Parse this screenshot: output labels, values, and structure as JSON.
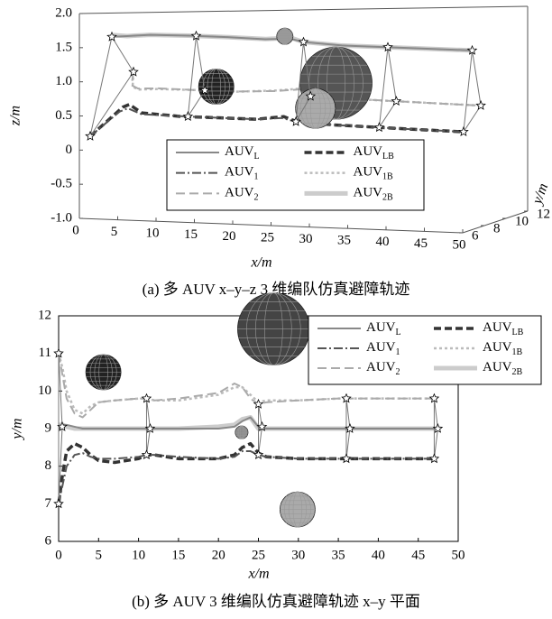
{
  "chart_data": [
    {
      "type": "line3d",
      "caption": "(a) 多 AUV x–y–z 3 维编队仿真避障轨迹",
      "xlabel": "x/m",
      "ylabel": "y/m",
      "zlabel": "z/m",
      "xlim": [
        0,
        50
      ],
      "ylim": [
        6,
        12
      ],
      "zlim": [
        -1,
        2
      ],
      "xticks": [
        0,
        5,
        10,
        15,
        20,
        25,
        30,
        35,
        40,
        45,
        50
      ],
      "yticks": [
        6,
        8,
        10,
        12
      ],
      "zticks": [
        {
          "value": -1,
          "label": "-1.0"
        },
        -0.5,
        0,
        0.5,
        {
          "value": 1,
          "label": "1.0"
        },
        1.5,
        {
          "value": 2,
          "label": "2.0"
        }
      ],
      "formation_x": [
        0,
        11,
        25,
        36,
        47
      ],
      "x": [
        0,
        2,
        3,
        5,
        10,
        15,
        20,
        23,
        25,
        30,
        40,
        47
      ],
      "series": [
        {
          "name": "AUV",
          "subscript": "L",
          "color": "#888888",
          "y": [
            9,
            9,
            9,
            9,
            9,
            9,
            9,
            9.2,
            9,
            9,
            9,
            9
          ],
          "z": [
            1.5,
            1.52,
            1.53,
            1.55,
            1.56,
            1.56,
            1.55,
            1.56,
            1.53,
            1.5,
            1.5,
            1.5
          ]
        },
        {
          "name": "AUV",
          "subscript": "LB",
          "color": "#333333",
          "y": [
            7,
            8.6,
            8.5,
            8.2,
            8.2,
            8.2,
            8.2,
            8.6,
            8.35,
            8.2,
            8.2,
            8.2
          ],
          "z": [
            0.15,
            0.5,
            0.55,
            0.45,
            0.42,
            0.42,
            0.42,
            0.45,
            0.4,
            0.38,
            0.36,
            0.35
          ]
        },
        {
          "name": "AUV",
          "subscript": "1",
          "color": "#555555",
          "y": [
            7,
            8.3,
            8.35,
            8.2,
            8.25,
            8.2,
            8.2,
            8.4,
            8.3,
            8.2,
            8.2,
            8.2
          ],
          "z": [
            0.15,
            0.45,
            0.5,
            0.43,
            0.42,
            0.42,
            0.42,
            0.44,
            0.4,
            0.38,
            0.36,
            0.35
          ]
        },
        {
          "name": "AUV",
          "subscript": "1B",
          "color": "#bbbbbb",
          "y": [
            11,
            9.5,
            9.4,
            9.7,
            9.8,
            9.75,
            9.9,
            10.1,
            9.7,
            9.75,
            9.8,
            9.8
          ],
          "z": [
            0.88,
            0.75,
            0.72,
            0.72,
            0.72,
            0.72,
            0.75,
            0.78,
            0.7,
            0.68,
            0.66,
            0.65
          ]
        },
        {
          "name": "AUV",
          "subscript": "2",
          "color": "#aaaaaa",
          "y": [
            11,
            9.4,
            9.3,
            9.7,
            9.8,
            9.8,
            9.95,
            10.1,
            9.65,
            9.75,
            9.8,
            9.8
          ],
          "z": [
            0.88,
            0.78,
            0.74,
            0.73,
            0.72,
            0.72,
            0.74,
            0.77,
            0.7,
            0.68,
            0.66,
            0.65
          ]
        },
        {
          "name": "AUV",
          "subscript": "2B",
          "color": "#cccccc",
          "y": [
            9.1,
            9,
            9,
            9,
            9,
            9,
            9.05,
            9.25,
            9,
            9,
            9,
            9
          ],
          "z": [
            1.52,
            1.52,
            1.53,
            1.55,
            1.56,
            1.56,
            1.55,
            1.57,
            1.53,
            1.5,
            1.5,
            1.5
          ]
        }
      ],
      "obstacles": [
        {
          "x": 11.5,
          "y": 10.5,
          "z": 0.74,
          "r": 2.3,
          "color": "#222222"
        },
        {
          "x": 25.5,
          "y": 11.65,
          "z": 0.79,
          "r": 4.7,
          "color": "#555555"
        },
        {
          "x": 26.7,
          "y": 8.9,
          "z": 0.57,
          "r": 2.6,
          "color": "#aaaaaa"
        },
        {
          "x": 25.6,
          "y": 6.85,
          "z": 1.73,
          "r": 1.06,
          "color": "#999999"
        }
      ]
    },
    {
      "type": "line",
      "caption": "(b) 多 AUV 3 维编队仿真避障轨迹 x–y 平面",
      "xlabel": "x/m",
      "ylabel": "y/m",
      "xlim": [
        0,
        50
      ],
      "ylim": [
        6,
        12
      ],
      "xticks": [
        0,
        5,
        10,
        15,
        20,
        25,
        30,
        35,
        40,
        45,
        50
      ],
      "yticks": [
        6,
        7,
        8,
        9,
        10,
        11,
        12
      ],
      "formation_x": [
        0,
        11,
        25,
        36,
        47
      ],
      "x": [
        0,
        0.5,
        1,
        2,
        3,
        4,
        5,
        7,
        10,
        11,
        12,
        15,
        20,
        22,
        23,
        24,
        25,
        26,
        30,
        35,
        40,
        47
      ],
      "series": [
        {
          "name": "AUV",
          "subscript": "L",
          "color": "#888888",
          "values": [
            9.05,
            9.1,
            9.1,
            9.05,
            9,
            9,
            9,
            9,
            9,
            9,
            9,
            9,
            9,
            9.05,
            9.2,
            9.3,
            9.05,
            9,
            9,
            9,
            9,
            9
          ]
        },
        {
          "name": "AUV",
          "subscript": "LB",
          "color": "#333333",
          "values": [
            7,
            7.8,
            8.4,
            8.6,
            8.5,
            8.3,
            8.15,
            8.1,
            8.2,
            8.3,
            8.3,
            8.2,
            8.2,
            8.3,
            8.5,
            8.6,
            8.35,
            8.25,
            8.2,
            8.2,
            8.2,
            8.2
          ]
        },
        {
          "name": "AUV",
          "subscript": "1",
          "color": "#555555",
          "values": [
            7,
            7.5,
            8,
            8.3,
            8.35,
            8.25,
            8.2,
            8.2,
            8.25,
            8.3,
            8.3,
            8.25,
            8.2,
            8.25,
            8.4,
            8.4,
            8.3,
            8.25,
            8.2,
            8.2,
            8.2,
            8.2
          ]
        },
        {
          "name": "AUV",
          "subscript": "1B",
          "color": "#bbbbbb",
          "values": [
            11,
            10.6,
            10,
            9.5,
            9.4,
            9.6,
            9.7,
            9.75,
            9.8,
            9.8,
            9.75,
            9.75,
            9.9,
            10.1,
            10.1,
            9.9,
            9.7,
            9.75,
            9.75,
            9.8,
            9.8,
            9.8
          ]
        },
        {
          "name": "AUV",
          "subscript": "2",
          "color": "#aaaaaa",
          "values": [
            11,
            10.4,
            9.8,
            9.4,
            9.3,
            9.5,
            9.7,
            9.75,
            9.8,
            9.8,
            9.75,
            9.8,
            9.95,
            10.2,
            10.1,
            9.8,
            9.65,
            9.7,
            9.75,
            9.8,
            9.8,
            9.8
          ]
        },
        {
          "name": "AUV",
          "subscript": "2B",
          "color": "#cccccc",
          "values": [
            9.1,
            9.1,
            9.05,
            9,
            9,
            9,
            9,
            9,
            9,
            9,
            9,
            9,
            9.05,
            9.1,
            9.25,
            9.3,
            9,
            9,
            9,
            9,
            9,
            9
          ]
        }
      ],
      "obstacles": [
        {
          "x": 5.6,
          "y": 10.5,
          "r": 2.2,
          "color": "#222222"
        },
        {
          "x": 26.9,
          "y": 11.65,
          "r": 4.5,
          "color": "#444444"
        },
        {
          "x": 22.9,
          "y": 8.9,
          "r": 0.8,
          "color": "#888888"
        },
        {
          "x": 29.9,
          "y": 6.85,
          "r": 2.2,
          "color": "#aaaaaa"
        }
      ]
    }
  ]
}
